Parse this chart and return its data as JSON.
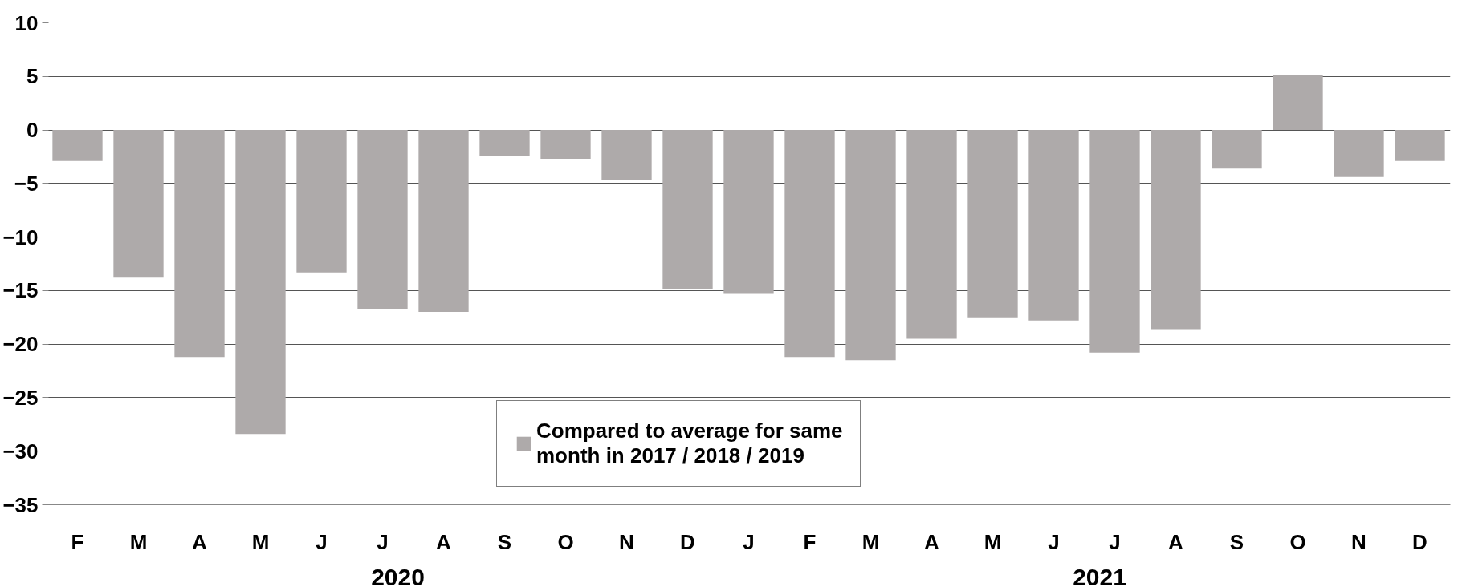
{
  "chart_data": {
    "type": "bar",
    "categories": [
      "F",
      "M",
      "A",
      "M",
      "J",
      "J",
      "A",
      "S",
      "O",
      "N",
      "D",
      "J",
      "F",
      "M",
      "A",
      "M",
      "J",
      "J",
      "A",
      "S",
      "O",
      "N",
      "D"
    ],
    "series": [
      {
        "name": "Compared to average for same month in 2017 / 2018 / 2019",
        "color": "#aeaaaa",
        "values": [
          -2.9,
          -13.8,
          -21.2,
          -28.4,
          -13.3,
          -16.7,
          -17.0,
          -2.4,
          -2.7,
          -4.7,
          -14.9,
          -15.3,
          -21.2,
          -21.5,
          -19.5,
          -17.5,
          -17.8,
          -20.8,
          -18.6,
          -3.6,
          5.1,
          -4.4,
          -2.9
        ]
      }
    ],
    "annotations": [
      "2020",
      "2021"
    ],
    "ylim": [
      -35,
      10
    ],
    "yticks": [
      -35,
      -30,
      -25,
      -20,
      -15,
      -10,
      -5,
      0,
      5,
      10
    ],
    "grid": "y",
    "legend": "bottom"
  }
}
